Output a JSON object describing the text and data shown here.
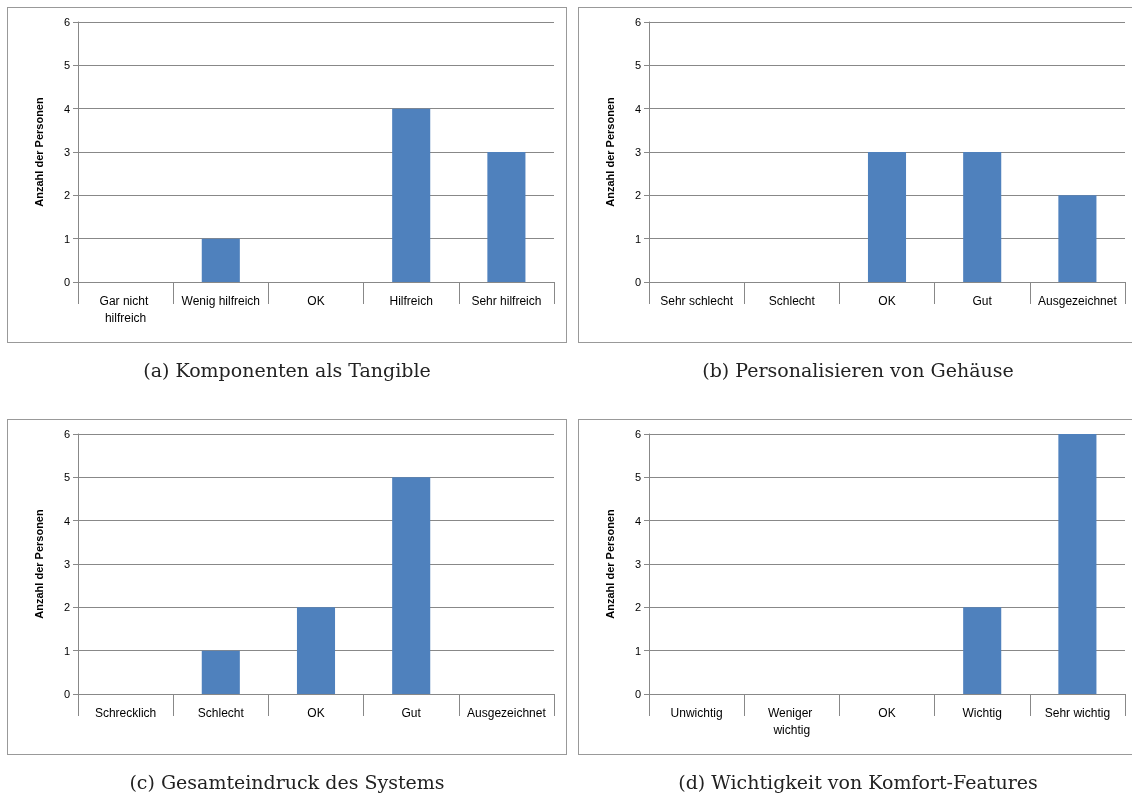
{
  "chart_data": [
    {
      "type": "bar",
      "title": "(a)  Komponenten als Tangible",
      "ylabel": "Anzahl der Personen",
      "categories": [
        "Gar nicht hilfreich",
        "Wenig hilfreich",
        "OK",
        "Hilfreich",
        "Sehr hilfreich"
      ],
      "values": [
        0,
        1,
        0,
        4,
        3
      ],
      "color": "#4f81bd",
      "ylim": [
        0,
        6
      ],
      "yticks": [
        0,
        1,
        2,
        3,
        4,
        5,
        6
      ],
      "grid": "y"
    },
    {
      "type": "bar",
      "title": "(b)  Personalisieren von Gehäuse",
      "ylabel": "Anzahl der Personen",
      "categories": [
        "Sehr schlecht",
        "Schlecht",
        "OK",
        "Gut",
        "Ausgezeichnet"
      ],
      "values": [
        0,
        0,
        3,
        3,
        2
      ],
      "color": "#4f81bd",
      "ylim": [
        0,
        6
      ],
      "yticks": [
        0,
        1,
        2,
        3,
        4,
        5,
        6
      ],
      "grid": "y"
    },
    {
      "type": "bar",
      "title": "(c)  Gesamteindruck des Systems",
      "ylabel": "Anzahl der Personen",
      "categories": [
        "Schrecklich",
        "Schlecht",
        "OK",
        "Gut",
        "Ausgezeichnet"
      ],
      "values": [
        0,
        1,
        2,
        5,
        0
      ],
      "color": "#4f81bd",
      "ylim": [
        0,
        6
      ],
      "yticks": [
        0,
        1,
        2,
        3,
        4,
        5,
        6
      ],
      "grid": "y"
    },
    {
      "type": "bar",
      "title": "(d)  Wichtigkeit von Komfort-Features",
      "ylabel": "Anzahl der Personen",
      "categories": [
        "Unwichtig",
        "Weniger wichtig",
        "OK",
        "Wichtig",
        "Sehr wichtig"
      ],
      "values": [
        0,
        0,
        0,
        2,
        6
      ],
      "color": "#4f81bd",
      "ylim": [
        0,
        6
      ],
      "yticks": [
        0,
        1,
        2,
        3,
        4,
        5,
        6
      ],
      "grid": "y"
    }
  ]
}
